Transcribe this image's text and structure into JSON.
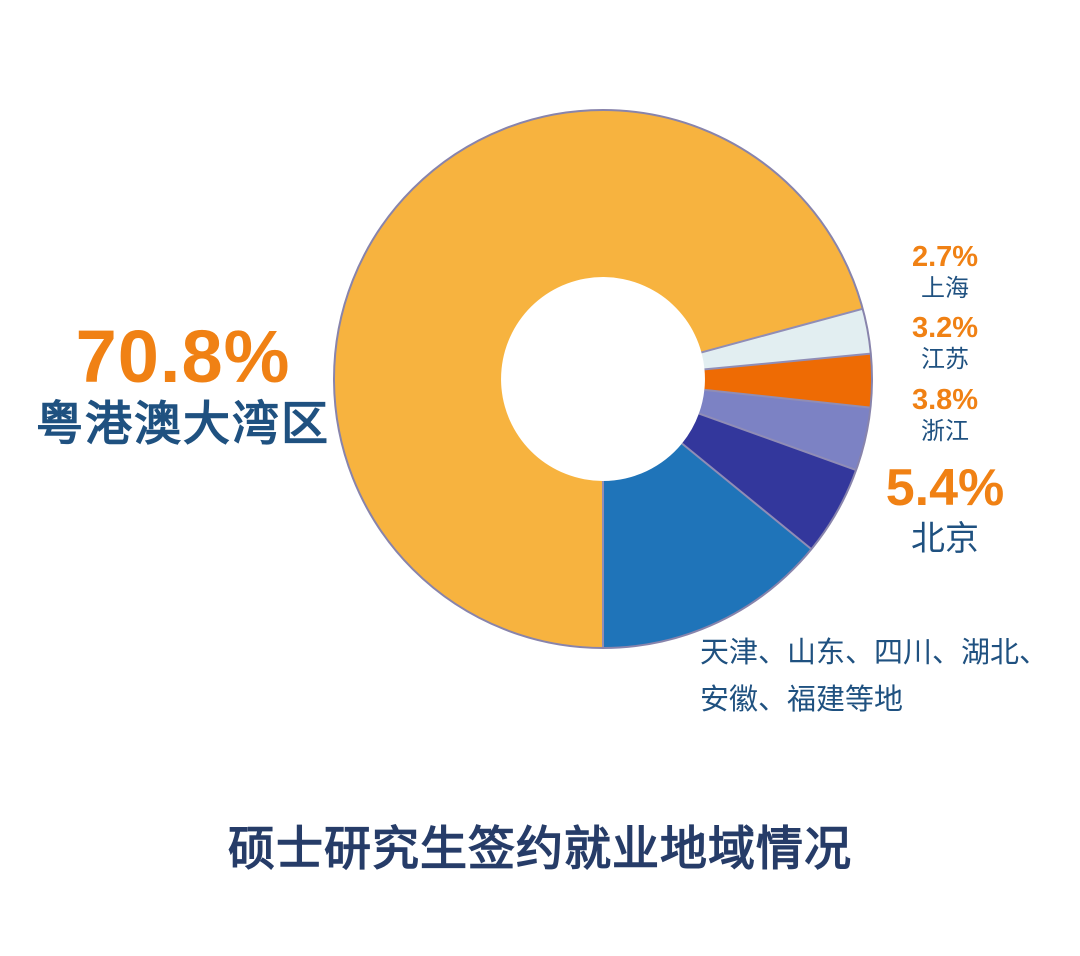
{
  "chart_data": {
    "type": "pie",
    "subtype": "donut",
    "title": "硕士研究生签约就业地域情况",
    "start_angle_deg": 180,
    "direction": "clockwise",
    "inner_radius_ratio": 0.379,
    "legend_position": "callout-labels",
    "segments": [
      {
        "label": "粤港澳大湾区",
        "value": 70.8,
        "percent_label": "70.8%",
        "color": "#F7B33F"
      },
      {
        "label": "上海",
        "value": 2.7,
        "percent_label": "2.7%",
        "color": "#E2EEF1"
      },
      {
        "label": "江苏",
        "value": 3.2,
        "percent_label": "3.2%",
        "color": "#EE6B04"
      },
      {
        "label": "浙江",
        "value": 3.8,
        "percent_label": "3.8%",
        "color": "#7C82C4"
      },
      {
        "label": "北京",
        "value": 5.4,
        "percent_label": "5.4%",
        "color": "#33379C"
      },
      {
        "label": "天津、山东、四川、湖北、安徽、福建等地",
        "value": 14.1,
        "percent_label": "",
        "color": "#1F74B9"
      }
    ],
    "outline_color": "#8884AC",
    "separator_color": "#908DB6"
  },
  "labels": {
    "gba": {
      "percent": "70.8%",
      "name": "粤港澳大湾区"
    },
    "shanghai": {
      "percent": "2.7%",
      "name": "上海"
    },
    "jiangsu": {
      "percent": "3.2%",
      "name": "江苏"
    },
    "zhejiang": {
      "percent": "3.8%",
      "name": "浙江"
    },
    "beijing": {
      "percent": "5.4%",
      "name": "北京"
    },
    "others": {
      "line1": "天津、山东、四川、湖北、",
      "line2": "安徽、福建等地"
    }
  },
  "title": "硕士研究生签约就业地域情况",
  "styles": {
    "percent_color": "#F08114",
    "name_color": "#1F5180",
    "title_color": "#263C68",
    "background_color": "#FFFFFF"
  }
}
